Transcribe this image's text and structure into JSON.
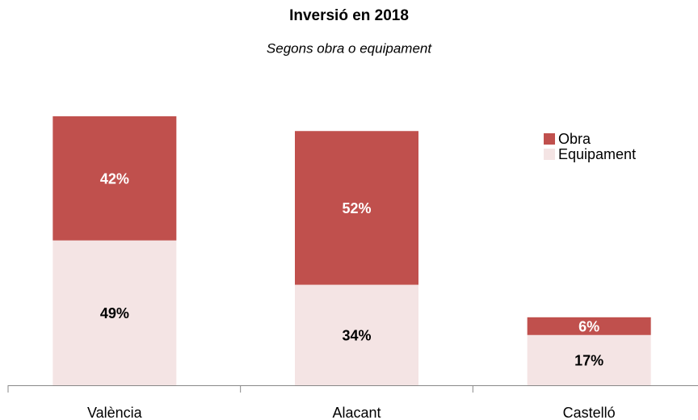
{
  "chart_data": {
    "type": "stacked_bar",
    "title": "Inversió en 2018",
    "subtitle": "Segons obra o equipament",
    "categories": [
      "València",
      "Alacant",
      "Castelló"
    ],
    "series": [
      {
        "name": "Equipament",
        "color": "#f4e4e4",
        "label_color": "#000000",
        "values": [
          49,
          34,
          17
        ],
        "value_labels": [
          "49%",
          "34%",
          "17%"
        ]
      },
      {
        "name": "Obra",
        "color": "#c0504d",
        "label_color": "#ffffff",
        "values": [
          42,
          52,
          6
        ],
        "value_labels": [
          "42%",
          "52%",
          "6%"
        ]
      }
    ],
    "legend": "right"
  }
}
